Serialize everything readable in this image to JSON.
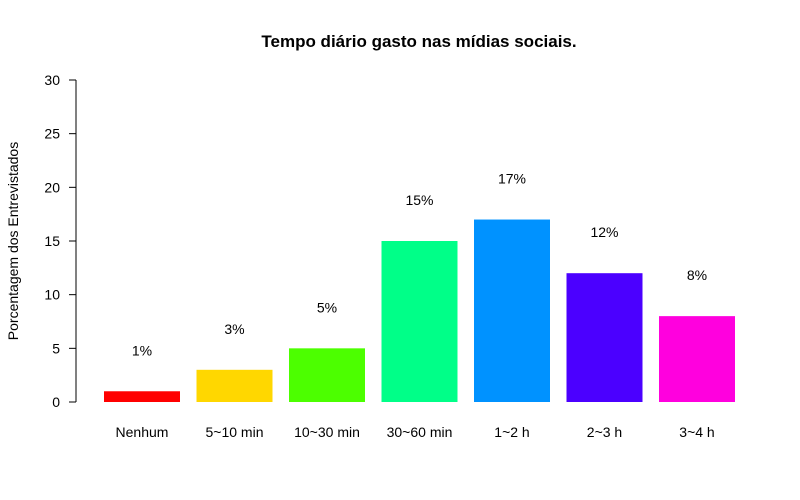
{
  "chart_data": {
    "type": "bar",
    "title": "Tempo diário gasto nas mídias sociais.",
    "xlabel": "",
    "ylabel": "Porcentagem dos Entrevistados",
    "categories": [
      "Nenhum",
      "5~10 min",
      "10~30 min",
      "30~60 min",
      "1~2 h",
      "2~3 h",
      "3~4 h"
    ],
    "values": [
      1,
      3,
      5,
      15,
      17,
      12,
      8
    ],
    "data_labels": [
      "1%",
      "3%",
      "5%",
      "15%",
      "17%",
      "12%",
      "8%"
    ],
    "colors": [
      "#ff0000",
      "#ffd700",
      "#4cff00",
      "#00ff88",
      "#0092ff",
      "#4b00ff",
      "#ff00de"
    ],
    "ylim": [
      0,
      30
    ],
    "yticks": [
      0,
      5,
      10,
      15,
      20,
      25,
      30
    ],
    "grid": false,
    "legend": "none"
  }
}
